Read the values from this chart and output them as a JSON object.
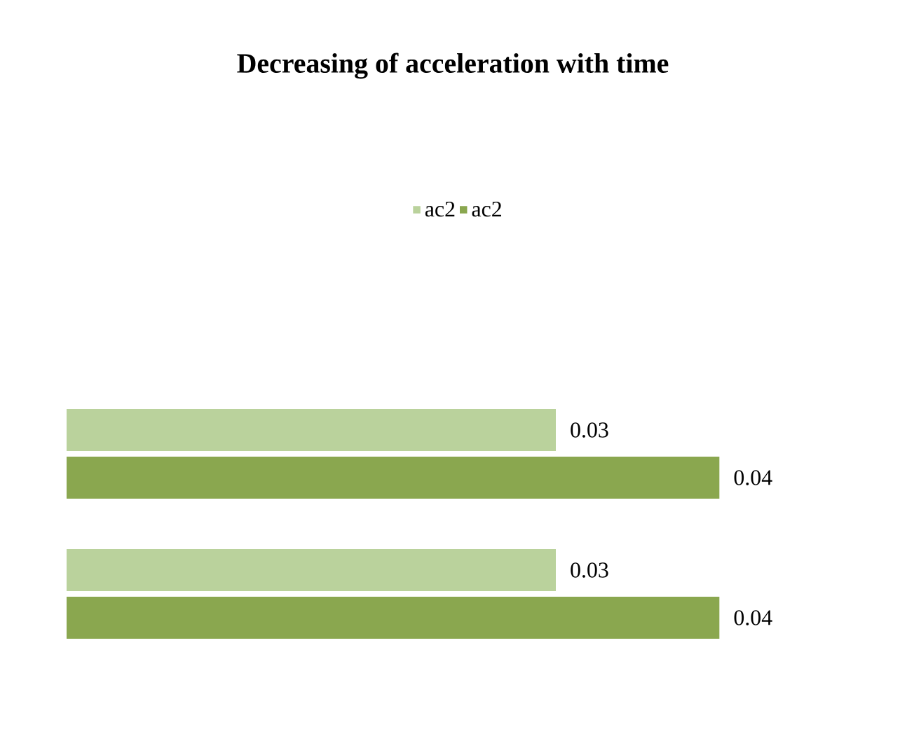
{
  "chart_data": {
    "type": "bar",
    "orientation": "horizontal",
    "title": "Decreasing of acceleration with time",
    "categories": [
      null,
      null
    ],
    "series": [
      {
        "name": "ac2",
        "color": "#bad29c",
        "values": [
          0.03,
          0.03
        ]
      },
      {
        "name": "ac2",
        "color": "#8aa74f",
        "values": [
          0.04,
          0.04
        ]
      }
    ],
    "data_labels": true,
    "legend": "top",
    "grid": false
  }
}
